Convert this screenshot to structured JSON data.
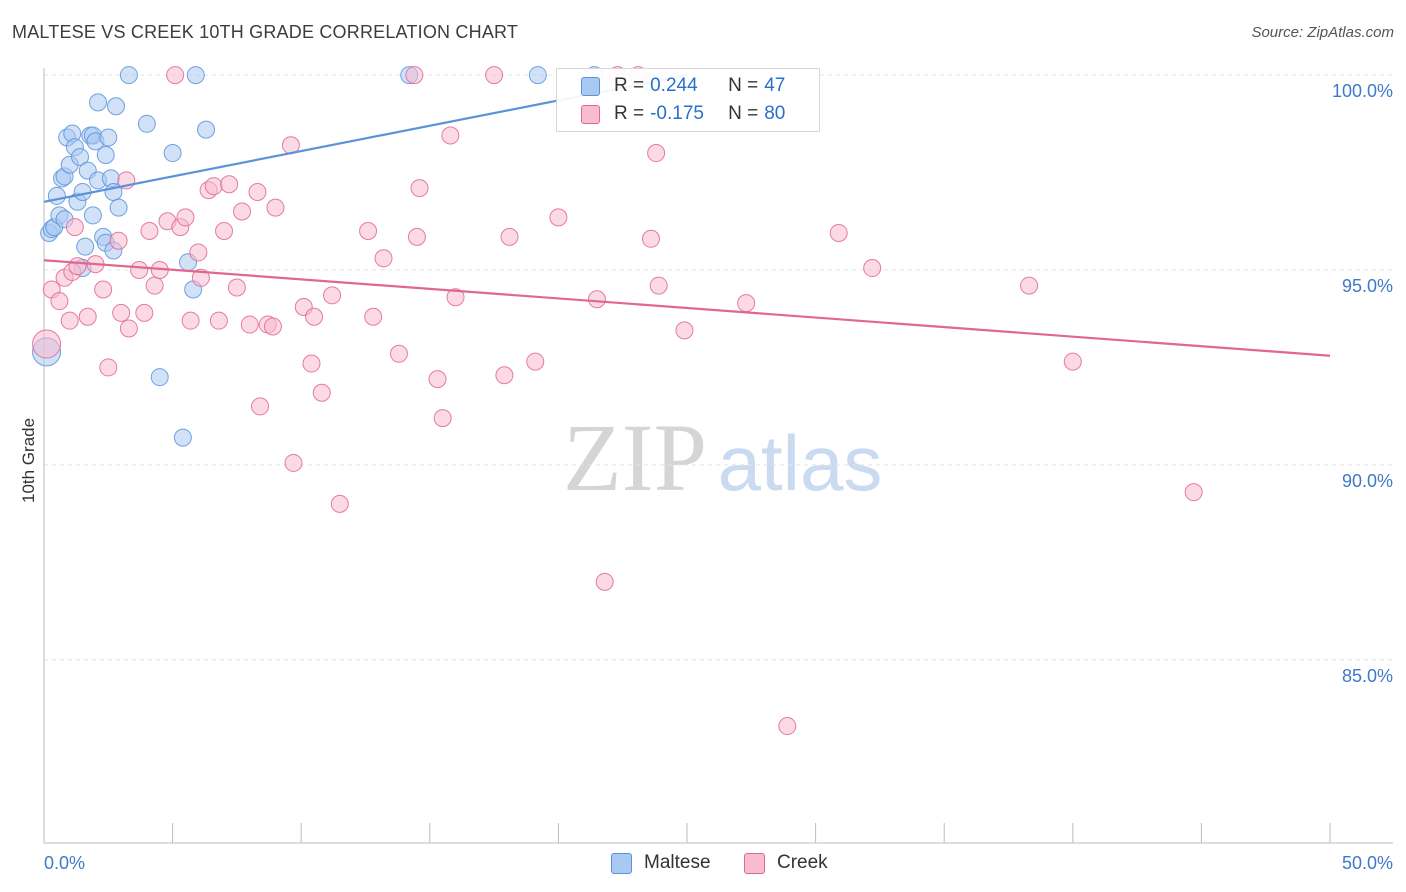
{
  "header": {
    "title": "MALTESE VS CREEK 10TH GRADE CORRELATION CHART",
    "source": "Source: ZipAtlas.com"
  },
  "watermark": {
    "zip": "ZIP",
    "atlas": "atlas"
  },
  "legend": {
    "rows": [
      {
        "r_label": "R =",
        "r_value": "0.244",
        "n_label": "N =",
        "n_value": "47",
        "color": "#a9c9f2"
      },
      {
        "r_label": "R =",
        "r_value": "-0.175",
        "n_label": "N =",
        "n_value": "80",
        "color": "#f7bcd0"
      }
    ]
  },
  "chart_data": {
    "type": "scatter",
    "title": "MALTESE VS CREEK 10TH GRADE CORRELATION CHART",
    "xlabel": "",
    "ylabel": "10th Grade",
    "xlim": [
      0,
      50
    ],
    "ylim": [
      80.3,
      100.9
    ],
    "x_tick_labels": [
      "0.0%",
      "50.0%"
    ],
    "y_ticks": [
      85,
      90,
      95,
      100
    ],
    "y_tick_labels": [
      "85.0%",
      "90.0%",
      "95.0%",
      "100.0%"
    ],
    "grid": true,
    "legend_position": "top-center",
    "series": [
      {
        "name": "Maltese",
        "color": "#5b93d9",
        "fill": "#a9c9f2",
        "trend": {
          "x": [
            0,
            25
          ],
          "y": [
            96.75,
            100.0
          ]
        },
        "points": [
          [
            0.1,
            92.9
          ],
          [
            0.2,
            95.95
          ],
          [
            0.3,
            96.05
          ],
          [
            0.4,
            96.1
          ],
          [
            0.5,
            96.9
          ],
          [
            0.6,
            96.4
          ],
          [
            0.7,
            97.35
          ],
          [
            0.8,
            97.4
          ],
          [
            0.8,
            96.3
          ],
          [
            0.9,
            98.4
          ],
          [
            1.0,
            97.7
          ],
          [
            1.1,
            98.5
          ],
          [
            1.2,
            98.15
          ],
          [
            1.3,
            96.75
          ],
          [
            1.4,
            97.9
          ],
          [
            1.5,
            95.05
          ],
          [
            1.5,
            97.0
          ],
          [
            1.6,
            95.6
          ],
          [
            1.7,
            97.55
          ],
          [
            1.8,
            98.45
          ],
          [
            1.9,
            98.45
          ],
          [
            1.9,
            96.4
          ],
          [
            2.0,
            98.3
          ],
          [
            2.1,
            97.3
          ],
          [
            2.1,
            99.3
          ],
          [
            2.3,
            95.85
          ],
          [
            2.4,
            97.95
          ],
          [
            2.4,
            95.7
          ],
          [
            2.5,
            98.4
          ],
          [
            2.6,
            97.35
          ],
          [
            2.7,
            97.0
          ],
          [
            2.7,
            95.5
          ],
          [
            2.8,
            99.2
          ],
          [
            2.9,
            96.6
          ],
          [
            3.3,
            100.0
          ],
          [
            4.0,
            98.75
          ],
          [
            4.5,
            92.25
          ],
          [
            5.0,
            98.0
          ],
          [
            5.4,
            90.7
          ],
          [
            5.6,
            95.2
          ],
          [
            5.8,
            94.5
          ],
          [
            5.9,
            100.0
          ],
          [
            6.3,
            98.6
          ],
          [
            14.2,
            100.0
          ],
          [
            19.2,
            100.0
          ],
          [
            21.4,
            100.0
          ],
          [
            23.6,
            99.8
          ]
        ]
      },
      {
        "name": "Creek",
        "color": "#e06791",
        "fill": "#f7bcd0",
        "trend": {
          "x": [
            0,
            50
          ],
          "y": [
            95.25,
            92.8
          ]
        },
        "points": [
          [
            0.1,
            93.1
          ],
          [
            0.3,
            94.5
          ],
          [
            0.6,
            94.2
          ],
          [
            0.8,
            94.8
          ],
          [
            1.0,
            93.7
          ],
          [
            1.1,
            94.95
          ],
          [
            1.2,
            96.1
          ],
          [
            1.3,
            95.1
          ],
          [
            1.7,
            93.8
          ],
          [
            2.0,
            95.15
          ],
          [
            2.3,
            94.5
          ],
          [
            2.5,
            92.5
          ],
          [
            2.9,
            95.75
          ],
          [
            3.0,
            93.9
          ],
          [
            3.2,
            97.3
          ],
          [
            3.3,
            93.5
          ],
          [
            3.7,
            95.0
          ],
          [
            3.9,
            93.9
          ],
          [
            4.1,
            96.0
          ],
          [
            4.3,
            94.6
          ],
          [
            4.5,
            95.0
          ],
          [
            4.8,
            96.25
          ],
          [
            5.1,
            100.0
          ],
          [
            5.3,
            96.1
          ],
          [
            5.5,
            96.35
          ],
          [
            5.7,
            93.7
          ],
          [
            6.0,
            95.45
          ],
          [
            6.1,
            94.8
          ],
          [
            6.4,
            97.05
          ],
          [
            6.6,
            97.15
          ],
          [
            6.8,
            93.7
          ],
          [
            7.0,
            96.0
          ],
          [
            7.2,
            97.2
          ],
          [
            7.5,
            94.55
          ],
          [
            7.7,
            96.5
          ],
          [
            8.0,
            93.6
          ],
          [
            8.3,
            97.0
          ],
          [
            8.4,
            91.5
          ],
          [
            8.7,
            93.6
          ],
          [
            8.9,
            93.55
          ],
          [
            9.0,
            96.6
          ],
          [
            9.6,
            98.2
          ],
          [
            9.7,
            90.05
          ],
          [
            10.1,
            94.05
          ],
          [
            10.4,
            92.6
          ],
          [
            10.5,
            93.8
          ],
          [
            10.8,
            91.85
          ],
          [
            11.2,
            94.35
          ],
          [
            11.5,
            89.0
          ],
          [
            12.6,
            96.0
          ],
          [
            12.8,
            93.8
          ],
          [
            13.2,
            95.3
          ],
          [
            13.8,
            92.85
          ],
          [
            14.4,
            100.0
          ],
          [
            14.5,
            95.85
          ],
          [
            14.6,
            97.1
          ],
          [
            15.3,
            92.2
          ],
          [
            15.5,
            91.2
          ],
          [
            15.8,
            98.45
          ],
          [
            16.0,
            94.3
          ],
          [
            17.5,
            100.0
          ],
          [
            17.9,
            92.3
          ],
          [
            18.1,
            95.85
          ],
          [
            19.1,
            92.65
          ],
          [
            20.0,
            96.35
          ],
          [
            21.5,
            94.25
          ],
          [
            21.8,
            87.0
          ],
          [
            22.3,
            100.0
          ],
          [
            23.1,
            100.0
          ],
          [
            23.6,
            95.8
          ],
          [
            23.8,
            98.0
          ],
          [
            23.9,
            94.6
          ],
          [
            24.9,
            93.45
          ],
          [
            27.3,
            94.15
          ],
          [
            28.9,
            83.3
          ],
          [
            30.9,
            95.95
          ],
          [
            32.2,
            95.05
          ],
          [
            38.3,
            94.6
          ],
          [
            40.0,
            92.65
          ],
          [
            44.7,
            89.3
          ]
        ]
      }
    ]
  }
}
